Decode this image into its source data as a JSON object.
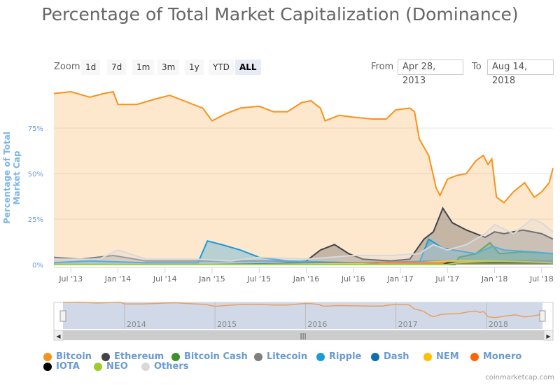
{
  "chart_data": {
    "type": "area",
    "title": "Percentage of Total Market Capitalization (Dominance)",
    "ylabel": "Percentage of Total Market Cap",
    "ylim": [
      0,
      100
    ],
    "y_ticks": [
      "0%",
      "25%",
      "50%",
      "75%"
    ],
    "x_range": [
      2013.32,
      2018.62
    ],
    "x_ticks": [
      {
        "t": 2013.5,
        "label": "Jul '13"
      },
      {
        "t": 2014.0,
        "label": "Jan '14"
      },
      {
        "t": 2014.5,
        "label": "Jul '14"
      },
      {
        "t": 2015.0,
        "label": "Jan '15"
      },
      {
        "t": 2015.5,
        "label": "Jul '15"
      },
      {
        "t": 2016.0,
        "label": "Jan '16"
      },
      {
        "t": 2016.5,
        "label": "Jul '16"
      },
      {
        "t": 2017.0,
        "label": "Jan '17"
      },
      {
        "t": 2017.5,
        "label": "Jul '17"
      },
      {
        "t": 2018.0,
        "label": "Jan '18"
      },
      {
        "t": 2018.5,
        "label": "Jul '18"
      }
    ],
    "navigator_ticks": [
      {
        "t": 2014.0,
        "label": "2014"
      },
      {
        "t": 2015.0,
        "label": "2015"
      },
      {
        "t": 2016.0,
        "label": "2016"
      },
      {
        "t": 2017.0,
        "label": "2017"
      },
      {
        "t": 2018.0,
        "label": "2018"
      }
    ],
    "series": [
      {
        "name": "Bitcoin",
        "color": "#f7931a",
        "points": [
          [
            2013.32,
            94
          ],
          [
            2013.5,
            95
          ],
          [
            2013.7,
            92
          ],
          [
            2013.85,
            94
          ],
          [
            2013.95,
            95
          ],
          [
            2014.0,
            88
          ],
          [
            2014.2,
            88
          ],
          [
            2014.4,
            91
          ],
          [
            2014.55,
            93
          ],
          [
            2014.7,
            90
          ],
          [
            2014.9,
            86
          ],
          [
            2015.0,
            79
          ],
          [
            2015.15,
            83
          ],
          [
            2015.3,
            86
          ],
          [
            2015.5,
            87
          ],
          [
            2015.65,
            84
          ],
          [
            2015.8,
            84
          ],
          [
            2015.95,
            89
          ],
          [
            2016.05,
            90
          ],
          [
            2016.15,
            86
          ],
          [
            2016.2,
            79
          ],
          [
            2016.35,
            82
          ],
          [
            2016.5,
            81
          ],
          [
            2016.7,
            80
          ],
          [
            2016.85,
            80
          ],
          [
            2016.95,
            85
          ],
          [
            2017.1,
            86
          ],
          [
            2017.15,
            84
          ],
          [
            2017.2,
            69
          ],
          [
            2017.3,
            60
          ],
          [
            2017.38,
            42
          ],
          [
            2017.42,
            38
          ],
          [
            2017.5,
            47
          ],
          [
            2017.6,
            49
          ],
          [
            2017.7,
            50
          ],
          [
            2017.8,
            57
          ],
          [
            2017.88,
            60
          ],
          [
            2017.93,
            55
          ],
          [
            2017.97,
            58
          ],
          [
            2018.02,
            37
          ],
          [
            2018.1,
            34
          ],
          [
            2018.2,
            40
          ],
          [
            2018.32,
            45
          ],
          [
            2018.42,
            37
          ],
          [
            2018.5,
            40
          ],
          [
            2018.58,
            45
          ],
          [
            2018.62,
            53
          ]
        ]
      },
      {
        "name": "Ethereum",
        "color": "#434348",
        "points": [
          [
            2013.32,
            0
          ],
          [
            2015.6,
            0
          ],
          [
            2015.8,
            1
          ],
          [
            2016.0,
            2
          ],
          [
            2016.15,
            8
          ],
          [
            2016.3,
            11
          ],
          [
            2016.45,
            6
          ],
          [
            2016.6,
            3
          ],
          [
            2016.9,
            2
          ],
          [
            2017.1,
            3
          ],
          [
            2017.25,
            14
          ],
          [
            2017.35,
            18
          ],
          [
            2017.45,
            31
          ],
          [
            2017.55,
            23
          ],
          [
            2017.7,
            19
          ],
          [
            2017.9,
            15
          ],
          [
            2018.0,
            18
          ],
          [
            2018.1,
            17
          ],
          [
            2018.3,
            19
          ],
          [
            2018.5,
            17
          ],
          [
            2018.62,
            14
          ]
        ]
      },
      {
        "name": "Bitcoin Cash",
        "color": "#3e8f2f",
        "points": [
          [
            2013.32,
            0
          ],
          [
            2017.58,
            0
          ],
          [
            2017.62,
            4
          ],
          [
            2017.8,
            6
          ],
          [
            2017.95,
            12
          ],
          [
            2018.05,
            6
          ],
          [
            2018.3,
            7
          ],
          [
            2018.62,
            6
          ]
        ]
      },
      {
        "name": "Litecoin",
        "color": "#808080",
        "points": [
          [
            2013.32,
            4
          ],
          [
            2013.6,
            3
          ],
          [
            2013.95,
            5
          ],
          [
            2014.3,
            2
          ],
          [
            2015.0,
            2
          ],
          [
            2015.6,
            2
          ],
          [
            2016.5,
            1
          ],
          [
            2017.4,
            2
          ],
          [
            2017.95,
            2
          ],
          [
            2018.3,
            2
          ],
          [
            2018.62,
            2
          ]
        ]
      },
      {
        "name": "Ripple",
        "color": "#1a9bdc",
        "points": [
          [
            2013.32,
            1
          ],
          [
            2013.7,
            2
          ],
          [
            2014.3,
            1
          ],
          [
            2014.85,
            1
          ],
          [
            2014.95,
            13
          ],
          [
            2015.1,
            11
          ],
          [
            2015.3,
            8
          ],
          [
            2015.5,
            4
          ],
          [
            2015.8,
            2
          ],
          [
            2016.5,
            1
          ],
          [
            2017.2,
            1
          ],
          [
            2017.3,
            14
          ],
          [
            2017.45,
            9
          ],
          [
            2017.8,
            6
          ],
          [
            2017.98,
            10
          ],
          [
            2018.1,
            8
          ],
          [
            2018.4,
            7
          ],
          [
            2018.62,
            6
          ]
        ]
      },
      {
        "name": "Dash",
        "color": "#0c6fb3",
        "points": [
          [
            2013.32,
            0
          ],
          [
            2015.0,
            0
          ],
          [
            2016.2,
            1
          ],
          [
            2017.2,
            1
          ],
          [
            2017.5,
            2
          ],
          [
            2018.62,
            1
          ]
        ]
      },
      {
        "name": "NEM",
        "color": "#fdbf00",
        "points": [
          [
            2013.32,
            0
          ],
          [
            2015.5,
            0
          ],
          [
            2017.2,
            1
          ],
          [
            2017.5,
            2
          ],
          [
            2018.0,
            2
          ],
          [
            2018.62,
            1
          ]
        ]
      },
      {
        "name": "Monero",
        "color": "#ff6600",
        "points": [
          [
            2013.32,
            0
          ],
          [
            2016.6,
            0
          ],
          [
            2016.8,
            1
          ],
          [
            2017.5,
            1
          ],
          [
            2018.62,
            1
          ]
        ]
      },
      {
        "name": "IOTA",
        "color": "#000000",
        "points": [
          [
            2013.32,
            0
          ],
          [
            2017.45,
            0
          ],
          [
            2017.5,
            1
          ],
          [
            2018.62,
            1
          ]
        ]
      },
      {
        "name": "NEO",
        "color": "#9ccc2a",
        "points": [
          [
            2013.32,
            0
          ],
          [
            2017.5,
            0
          ],
          [
            2017.6,
            1
          ],
          [
            2018.0,
            2
          ],
          [
            2018.62,
            1
          ]
        ]
      },
      {
        "name": "Others",
        "color": "#d9d9d9",
        "points": [
          [
            2013.32,
            3
          ],
          [
            2013.8,
            3
          ],
          [
            2014.0,
            8
          ],
          [
            2014.3,
            3
          ],
          [
            2014.8,
            3
          ],
          [
            2015.2,
            2
          ],
          [
            2015.5,
            4
          ],
          [
            2016.0,
            3
          ],
          [
            2016.5,
            5
          ],
          [
            2016.9,
            5
          ],
          [
            2017.2,
            6
          ],
          [
            2017.35,
            11
          ],
          [
            2017.5,
            8
          ],
          [
            2017.7,
            11
          ],
          [
            2017.9,
            17
          ],
          [
            2018.0,
            22
          ],
          [
            2018.2,
            17
          ],
          [
            2018.4,
            25
          ],
          [
            2018.5,
            23
          ],
          [
            2018.62,
            18
          ]
        ]
      }
    ]
  },
  "controls": {
    "zoom_label": "Zoom",
    "buttons": [
      "1d",
      "7d",
      "1m",
      "3m",
      "1y",
      "YTD",
      "ALL"
    ],
    "selected": "ALL",
    "from_label": "From",
    "from_value": "Apr 28, 2013",
    "to_label": "To",
    "to_value": "Aug 14, 2018"
  },
  "credit": "coinmarketcap.com"
}
